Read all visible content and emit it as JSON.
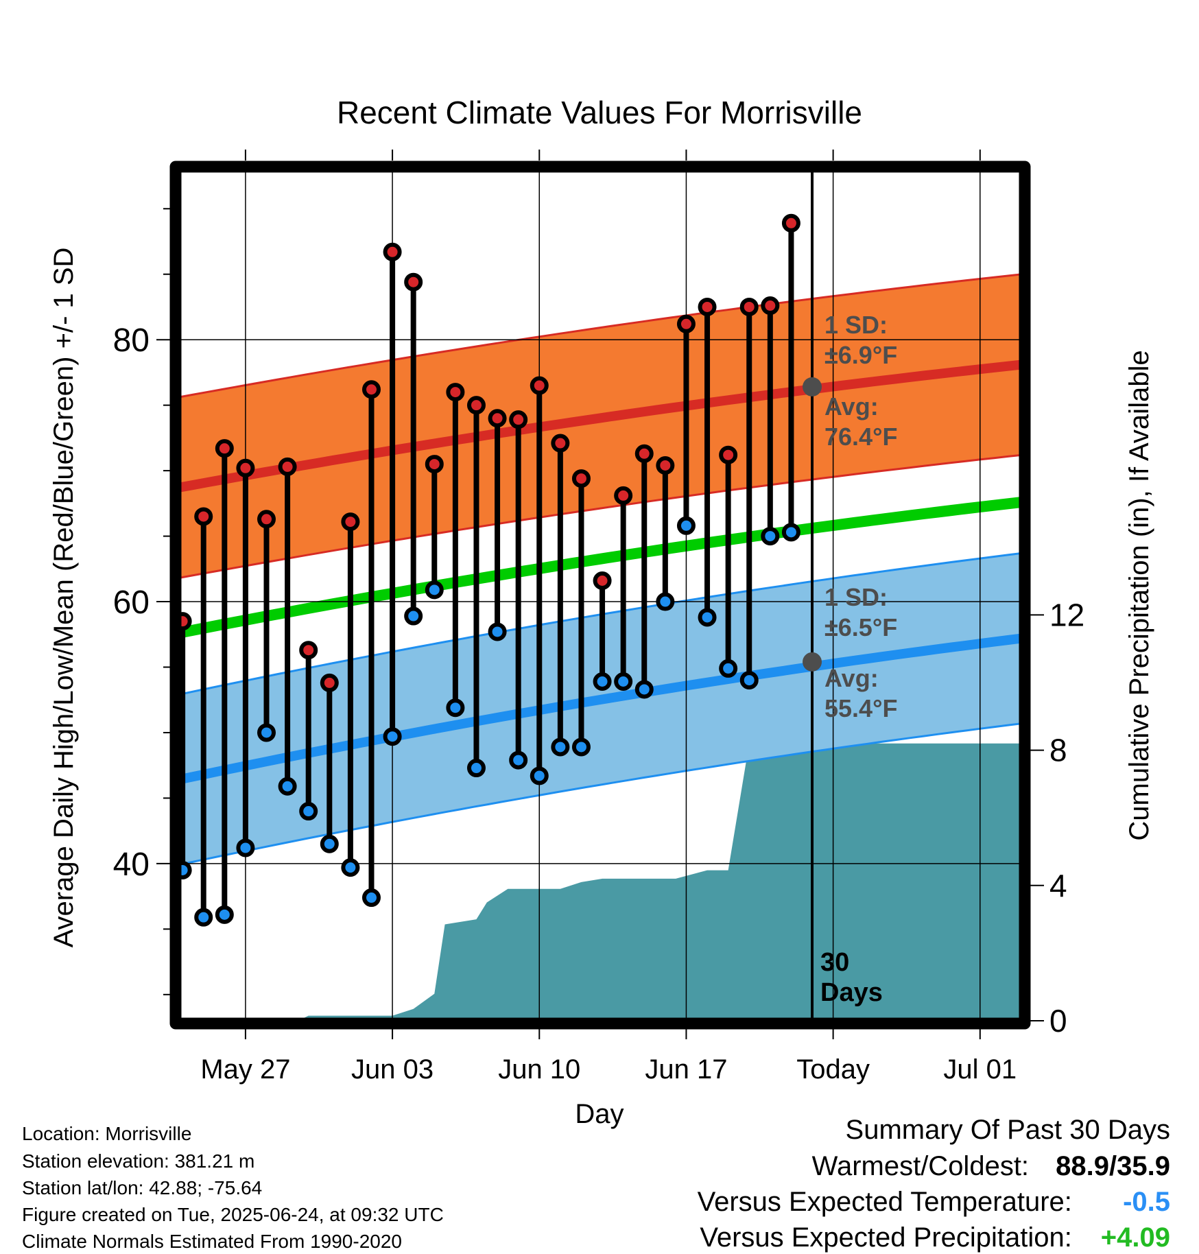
{
  "chart_data": {
    "type": "line",
    "title": "Recent Climate Values For Morrisville",
    "xlabel": "Day",
    "ylabel_left": "Average Daily High/Low/Mean (Red/Blue/Green) +/- 1 SD",
    "ylabel_right": "Cumulative Precipitation (in), If Available",
    "x_ticks": [
      "May 27",
      "Jun 03",
      "Jun 10",
      "Jun 17",
      "Today",
      "Jul 01"
    ],
    "y_left_ticks": [
      "40",
      "60",
      "80"
    ],
    "y_left_range": [
      28,
      93
    ],
    "y_right_ticks": [
      "0",
      "4",
      "8",
      "12"
    ],
    "today_label": "30\nDays",
    "today_label_lines": [
      "30",
      "Days"
    ],
    "x_range_days": [
      -30.2,
      10
    ],
    "normals": {
      "high_avg_start": 68.7,
      "high_avg_end": 78.1,
      "high_sd": 6.9,
      "low_avg_start": 46.4,
      "low_avg_end": 57.2,
      "low_sd": 6.5,
      "mean_start": 57.6,
      "mean_end": 67.6
    },
    "high_annotation": {
      "sd_label": "1 SD:",
      "sd_value": "±6.9°F",
      "avg_label": "Avg:",
      "avg_value": "76.4°F",
      "avg": 76.4
    },
    "low_annotation": {
      "sd_label": "1 SD:",
      "sd_value": "±6.5°F",
      "avg_label": "Avg:",
      "avg_value": "55.4°F",
      "avg": 55.4
    },
    "days": [
      -30,
      -29,
      -28,
      -27,
      -26,
      -25,
      -24,
      -23,
      -22,
      -21,
      -20,
      -19,
      -18,
      -17,
      -16,
      -15,
      -14,
      -13,
      -12,
      -11,
      -10,
      -9,
      -8,
      -7,
      -6,
      -5,
      -4,
      -3,
      -2,
      -1
    ],
    "highs": [
      58.5,
      66.5,
      71.7,
      70.2,
      66.3,
      70.3,
      56.3,
      53.8,
      66.1,
      76.2,
      86.7,
      84.4,
      70.5,
      76.0,
      75.0,
      74.0,
      73.9,
      76.5,
      72.1,
      69.4,
      61.6,
      68.1,
      71.3,
      70.4,
      81.2,
      82.5,
      71.2,
      82.5,
      82.6,
      88.9
    ],
    "lows": [
      39.5,
      35.9,
      36.1,
      41.2,
      50.0,
      45.9,
      44.0,
      41.5,
      39.7,
      37.4,
      49.7,
      58.9,
      60.9,
      51.9,
      47.3,
      57.7,
      47.9,
      46.7,
      48.9,
      48.9,
      53.9,
      53.9,
      53.3,
      60.0,
      65.8,
      58.8,
      54.9,
      54.0,
      65.0,
      65.3
    ],
    "precip_days": [
      -30.2,
      -24.5,
      -24,
      -23,
      -20,
      -19,
      -18,
      -17.5,
      -16,
      -15.5,
      -14.5,
      -13.5,
      -12,
      -11,
      -10,
      -8,
      -7,
      -6.5,
      -5,
      -4,
      -3,
      -2,
      10
    ],
    "precip_cum": [
      0,
      0,
      0.15,
      0.15,
      0.15,
      0.35,
      0.8,
      2.85,
      3.0,
      3.5,
      3.9,
      3.9,
      3.9,
      4.1,
      4.2,
      4.2,
      4.2,
      4.2,
      4.45,
      4.45,
      8.2,
      8.2,
      8.2
    ],
    "series": [
      {
        "name": "High"
      },
      {
        "name": "Low"
      },
      {
        "name": "Mean"
      }
    ],
    "colors": {
      "high_band": "#f47a30",
      "high_line": "#d72b24",
      "low_band": "#85c1e6",
      "low_line": "#1e8ff0",
      "mean_line": "#00cc00",
      "precip": "#4a9aa4",
      "high_dot": "#d7262a",
      "low_dot": "#1e8ff0",
      "annotation": "#4d4d4d"
    }
  },
  "info": {
    "location": "Location: Morrisville",
    "elevation": "Station elevation: 381.21 m",
    "latlon": "Station lat/lon: 42.88; -75.64",
    "created": "Figure created on Tue, 2025-06-24, at 09:32 UTC",
    "normals": "Climate Normals Estimated From 1990-2020"
  },
  "summary": {
    "title": "Summary Of Past 30 Days",
    "warm_cold_label": "Warmest/Coldest:",
    "warm_cold_value": "88.9/35.9",
    "temp_label": "Versus Expected Temperature:",
    "temp_value": "-0.5",
    "temp_color": "#2a8ff5",
    "precip_label": "Versus Expected Precipitation:",
    "precip_value": "+4.09",
    "precip_color": "#22bb22"
  }
}
